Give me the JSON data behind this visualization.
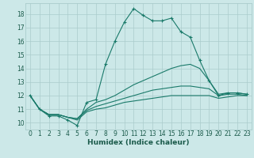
{
  "xlabel": "Humidex (Indice chaleur)",
  "background_color": "#cce8e8",
  "grid_color": "#aacccc",
  "line_color": "#1a7a6a",
  "xlim": [
    -0.5,
    23.5
  ],
  "ylim": [
    9.5,
    18.8
  ],
  "xticks": [
    0,
    1,
    2,
    3,
    4,
    5,
    6,
    7,
    8,
    9,
    10,
    11,
    12,
    13,
    14,
    15,
    16,
    17,
    18,
    19,
    20,
    21,
    22,
    23
  ],
  "yticks": [
    10,
    11,
    12,
    13,
    14,
    15,
    16,
    17,
    18
  ],
  "lines": [
    {
      "x": [
        0,
        1,
        2,
        3,
        4,
        5,
        6,
        7,
        8,
        9,
        10,
        11,
        12,
        13,
        14,
        15,
        16,
        17,
        18,
        19,
        20,
        21,
        22,
        23
      ],
      "y": [
        12,
        11,
        10.5,
        10.5,
        10.2,
        9.8,
        11.5,
        11.7,
        14.3,
        16.0,
        17.4,
        18.4,
        17.9,
        17.5,
        17.5,
        17.7,
        16.7,
        16.3,
        14.6,
        13.1,
        12.0,
        12.2,
        12.2,
        12.1
      ],
      "marker": true
    },
    {
      "x": [
        0,
        1,
        2,
        3,
        4,
        5,
        6,
        7,
        8,
        9,
        10,
        11,
        12,
        13,
        14,
        15,
        16,
        17,
        18,
        19,
        20,
        21,
        22,
        23
      ],
      "y": [
        12,
        11,
        10.6,
        10.6,
        10.4,
        10.3,
        11.0,
        11.5,
        11.7,
        12.0,
        12.4,
        12.8,
        13.1,
        13.4,
        13.7,
        14.0,
        14.2,
        14.3,
        14.0,
        13.1,
        12.1,
        12.2,
        12.2,
        12.1
      ],
      "marker": false
    },
    {
      "x": [
        0,
        1,
        2,
        3,
        4,
        5,
        6,
        7,
        8,
        9,
        10,
        11,
        12,
        13,
        14,
        15,
        16,
        17,
        18,
        19,
        20,
        21,
        22,
        23
      ],
      "y": [
        12,
        11,
        10.6,
        10.6,
        10.4,
        10.3,
        10.9,
        11.2,
        11.4,
        11.6,
        11.8,
        12.0,
        12.2,
        12.4,
        12.5,
        12.6,
        12.7,
        12.7,
        12.6,
        12.5,
        12.0,
        12.1,
        12.1,
        12.0
      ],
      "marker": false
    },
    {
      "x": [
        0,
        1,
        2,
        3,
        4,
        5,
        6,
        7,
        8,
        9,
        10,
        11,
        12,
        13,
        14,
        15,
        16,
        17,
        18,
        19,
        20,
        21,
        22,
        23
      ],
      "y": [
        12,
        11,
        10.6,
        10.6,
        10.4,
        10.2,
        10.8,
        11.0,
        11.1,
        11.3,
        11.5,
        11.6,
        11.7,
        11.8,
        11.9,
        12.0,
        12.0,
        12.0,
        12.0,
        12.0,
        11.8,
        11.9,
        12.0,
        12.0
      ],
      "marker": false
    }
  ]
}
